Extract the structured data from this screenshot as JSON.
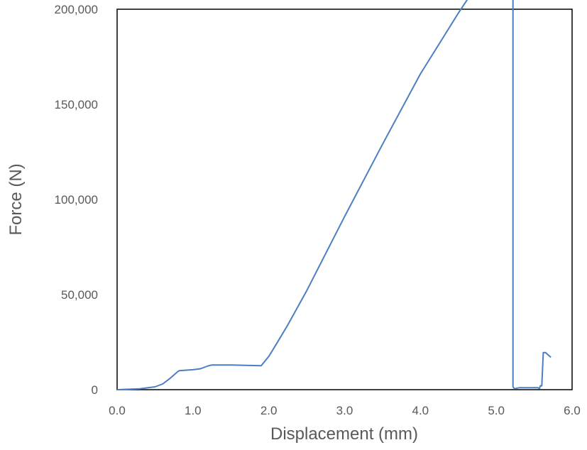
{
  "chart_data": {
    "type": "line",
    "title": "",
    "xlabel": "Displacement (mm)",
    "ylabel": "Force (N)",
    "xlim": [
      0.0,
      6.0
    ],
    "ylim": [
      0,
      200000
    ],
    "grid": false,
    "legend": "none",
    "x_ticks": [
      0.0,
      1.0,
      2.0,
      3.0,
      4.0,
      5.0,
      6.0
    ],
    "x_tick_labels": [
      "0.0",
      "1.0",
      "2.0",
      "3.0",
      "4.0",
      "5.0",
      "6.0"
    ],
    "y_ticks": [
      0,
      50000,
      100000,
      150000,
      200000
    ],
    "y_tick_labels": [
      "0",
      "50,000",
      "100,000",
      "150,000",
      "200,000"
    ],
    "colors": {
      "line": "#4a7fc1",
      "frame": "#000000",
      "text": "#595959"
    },
    "series": [
      {
        "x": [
          0.0,
          0.3,
          0.5,
          0.6,
          0.7,
          0.8,
          0.82,
          1.0,
          1.1,
          1.2,
          1.25,
          1.5,
          1.7,
          1.9,
          2.0,
          2.1,
          2.25,
          2.5,
          3.0,
          3.5,
          4.0,
          4.5,
          4.7,
          4.9,
          5.05,
          5.07,
          5.15,
          5.22,
          5.22,
          5.24,
          5.3,
          5.4,
          5.5,
          5.55,
          5.57,
          5.58,
          5.6,
          5.62,
          5.65,
          5.72
        ],
        "y": [
          0,
          500,
          1500,
          3000,
          6000,
          9500,
          10000,
          10500,
          11000,
          12500,
          13000,
          13000,
          12800,
          12600,
          17500,
          24000,
          34000,
          52000,
          91000,
          129000,
          166000,
          198000,
          210000,
          214000,
          217000,
          215000,
          217000,
          219000,
          1500,
          500,
          1000,
          1000,
          1000,
          1000,
          500,
          2000,
          2000,
          19500,
          19500,
          17000
        ]
      }
    ]
  }
}
